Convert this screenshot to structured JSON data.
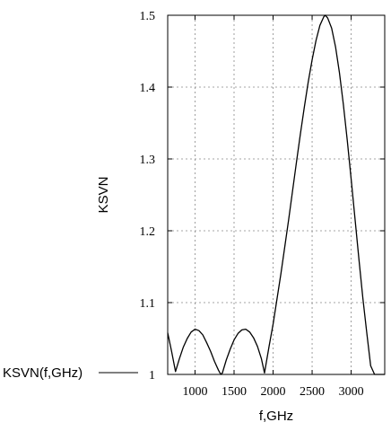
{
  "chart_data": {
    "type": "line",
    "xlabel": "f,GHz",
    "ylabel": "KSVN",
    "xlim": [
      650,
      3430
    ],
    "ylim": [
      1.0,
      1.5
    ],
    "x_ticks": [
      1000,
      1500,
      2000,
      2500,
      3000
    ],
    "x_tick_labels": [
      "1000",
      "1500",
      "2000",
      "2500",
      "3000"
    ],
    "y_ticks": [
      1.0,
      1.1,
      1.2,
      1.3,
      1.4,
      1.5
    ],
    "y_tick_labels": [
      "1",
      "1.1",
      "1.2",
      "1.3",
      "1.4",
      "1.5"
    ],
    "grid": true,
    "grid_style": "dotted",
    "legend_position": "bottom-left",
    "series": [
      {
        "name": "KSVN(f,GHz)",
        "color": "#000000",
        "x": [
          650,
          700,
          750,
          800,
          850,
          900,
          950,
          1000,
          1050,
          1100,
          1150,
          1200,
          1250,
          1300,
          1330,
          1350,
          1400,
          1450,
          1500,
          1550,
          1600,
          1650,
          1700,
          1750,
          1800,
          1850,
          1890,
          1950,
          2000,
          2050,
          2100,
          2150,
          2200,
          2250,
          2300,
          2350,
          2400,
          2450,
          2500,
          2550,
          2600,
          2650,
          2670,
          2700,
          2750,
          2800,
          2850,
          2900,
          2950,
          3000,
          3050,
          3100,
          3150,
          3200,
          3250,
          3300,
          3350,
          3400,
          3430
        ],
        "y": [
          1.058,
          1.032,
          1.004,
          1.022,
          1.038,
          1.05,
          1.059,
          1.063,
          1.061,
          1.055,
          1.044,
          1.032,
          1.018,
          1.006,
          1.0,
          1.002,
          1.02,
          1.035,
          1.048,
          1.057,
          1.062,
          1.063,
          1.059,
          1.051,
          1.039,
          1.022,
          1.002,
          1.04,
          1.07,
          1.105,
          1.14,
          1.178,
          1.216,
          1.256,
          1.296,
          1.335,
          1.372,
          1.407,
          1.438,
          1.465,
          1.486,
          1.498,
          1.5,
          1.496,
          1.482,
          1.456,
          1.42,
          1.376,
          1.326,
          1.272,
          1.216,
          1.16,
          1.106,
          1.058,
          1.012,
          1.0,
          1.0,
          1.0,
          1.0
        ]
      }
    ]
  }
}
